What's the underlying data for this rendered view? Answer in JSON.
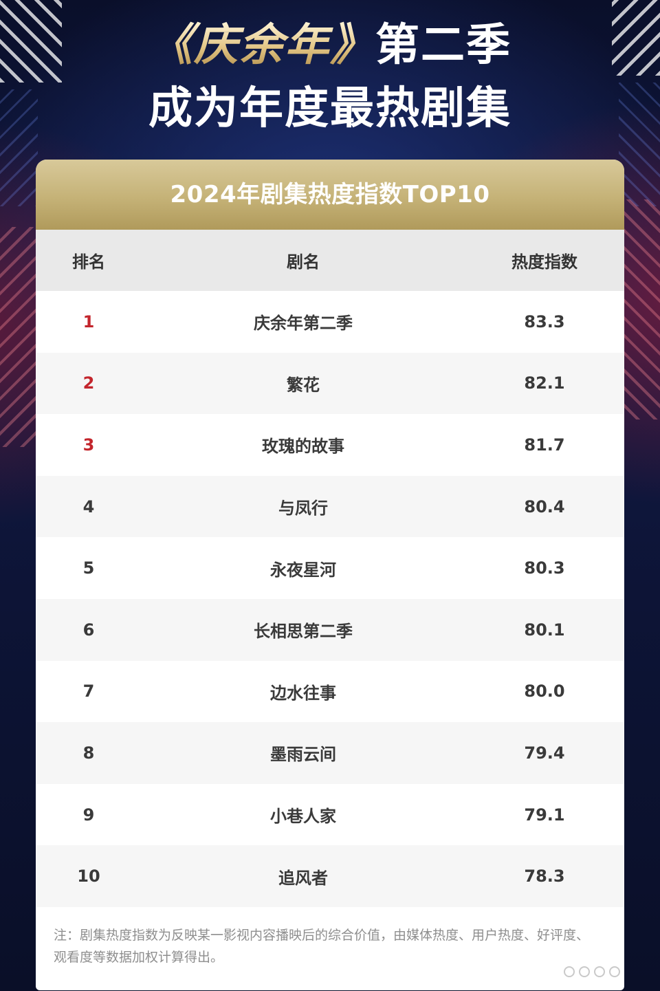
{
  "headline": {
    "line1_show": "《庆余年》",
    "line1_rest": "第二季",
    "line2": "成为年度最热剧集"
  },
  "table": {
    "title": "2024年剧集热度指数TOP10",
    "columns": [
      "排名",
      "剧名",
      "热度指数"
    ],
    "rows": [
      {
        "rank": "1",
        "name": "庆余年第二季",
        "score": "83.3"
      },
      {
        "rank": "2",
        "name": "繁花",
        "score": "82.1"
      },
      {
        "rank": "3",
        "name": "玫瑰的故事",
        "score": "81.7"
      },
      {
        "rank": "4",
        "name": "与凤行",
        "score": "80.4"
      },
      {
        "rank": "5",
        "name": "永夜星河",
        "score": "80.3"
      },
      {
        "rank": "6",
        "name": "长相思第二季",
        "score": "80.1"
      },
      {
        "rank": "7",
        "name": "边水往事",
        "score": "80.0"
      },
      {
        "rank": "8",
        "name": "墨雨云间",
        "score": "79.4"
      },
      {
        "rank": "9",
        "name": "小巷人家",
        "score": "79.1"
      },
      {
        "rank": "10",
        "name": "追风者",
        "score": "78.3"
      }
    ],
    "note": "注：剧集热度指数为反映某一影视内容播映后的综合价值，由媒体热度、用户热度、好评度、观看度等数据加权计算得出。"
  },
  "colors": {
    "top3_rank": "#c3252c",
    "header_gold": "#c5b277",
    "background_navy": "#0c1230"
  }
}
